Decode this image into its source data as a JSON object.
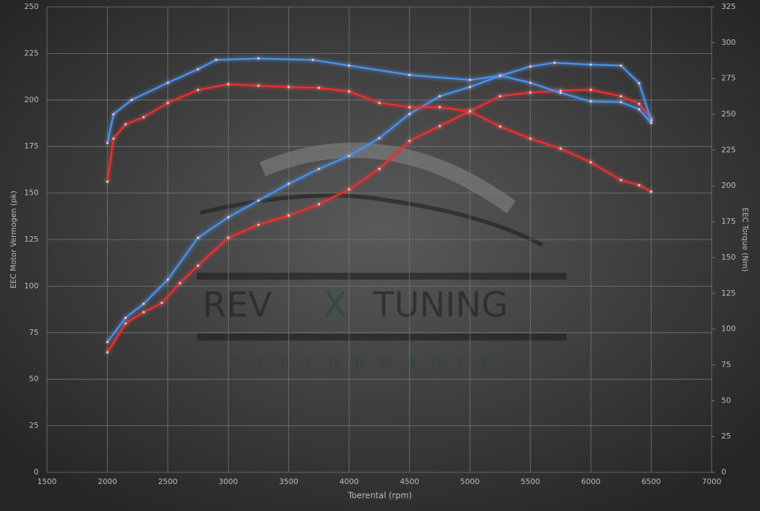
{
  "chart_data": {
    "type": "line",
    "xlabel": "Toerental (rpm)",
    "ylabel": "EEC Motor Vermogen (pk)",
    "y2label": "EEC Torque (Nm)",
    "xlim": [
      1500,
      7000
    ],
    "xticks": [
      1500,
      2000,
      2500,
      3000,
      3500,
      4000,
      4500,
      5000,
      5500,
      6000,
      6500,
      7000
    ],
    "ylim": [
      0,
      250
    ],
    "yticks": [
      0,
      25,
      50,
      75,
      100,
      125,
      150,
      175,
      200,
      225,
      250
    ],
    "y2lim": [
      0,
      325
    ],
    "y2ticks": [
      0,
      25,
      50,
      75,
      100,
      125,
      150,
      175,
      200,
      225,
      250,
      275,
      300,
      325
    ],
    "grid": true,
    "watermark": [
      "REV",
      "X",
      "TUNING",
      "PERFORMANCE"
    ],
    "series": [
      {
        "color": "#e53030",
        "axis": "y",
        "x": [
          2000,
          2150,
          2300,
          2450,
          2600,
          2750,
          3000,
          3250,
          3500,
          3750,
          4000,
          4250,
          4500,
          4750,
          5000,
          5250,
          5500,
          5750,
          6000,
          6250,
          6400,
          6500
        ],
        "values": [
          64.5,
          80,
          86,
          91,
          101.6,
          111,
          126,
          133,
          138,
          144,
          152,
          163,
          178,
          186,
          194,
          202,
          204,
          205,
          205.5,
          202,
          198,
          190
        ]
      },
      {
        "color": "#4a90e8",
        "axis": "y",
        "x": [
          2000,
          2150,
          2300,
          2500,
          2750,
          3000,
          3250,
          3500,
          3750,
          4000,
          4250,
          4500,
          4750,
          5000,
          5250,
          5500,
          5700,
          6000,
          6250,
          6400,
          6500
        ],
        "values": [
          70,
          83,
          90.5,
          103.5,
          126,
          137,
          146,
          155,
          163,
          170,
          179.5,
          192.5,
          202,
          207,
          213,
          218,
          220,
          219,
          218.5,
          209,
          189
        ]
      },
      {
        "color": "#e53030",
        "axis": "y2",
        "x": [
          2000,
          2050,
          2150,
          2300,
          2500,
          2750,
          3000,
          3250,
          3500,
          3750,
          4000,
          4250,
          4500,
          4750,
          5000,
          5250,
          5500,
          5750,
          6000,
          6250,
          6400,
          6500
        ],
        "values": [
          203,
          233,
          243,
          248,
          258,
          267,
          271,
          270,
          269,
          268.5,
          266,
          258,
          255,
          255,
          252,
          241.5,
          233,
          226,
          216.5,
          204,
          200.5,
          196
        ]
      },
      {
        "color": "#4a90e8",
        "axis": "y2",
        "x": [
          2000,
          2050,
          2200,
          2500,
          2750,
          2900,
          3250,
          3700,
          4000,
          4500,
          5000,
          5250,
          5500,
          5750,
          6000,
          6250,
          6400,
          6500
        ],
        "values": [
          230,
          250,
          260,
          272,
          281.5,
          288,
          289,
          288,
          284,
          277.5,
          274,
          277,
          272,
          265,
          259,
          258.5,
          253.5,
          244
        ]
      }
    ]
  }
}
